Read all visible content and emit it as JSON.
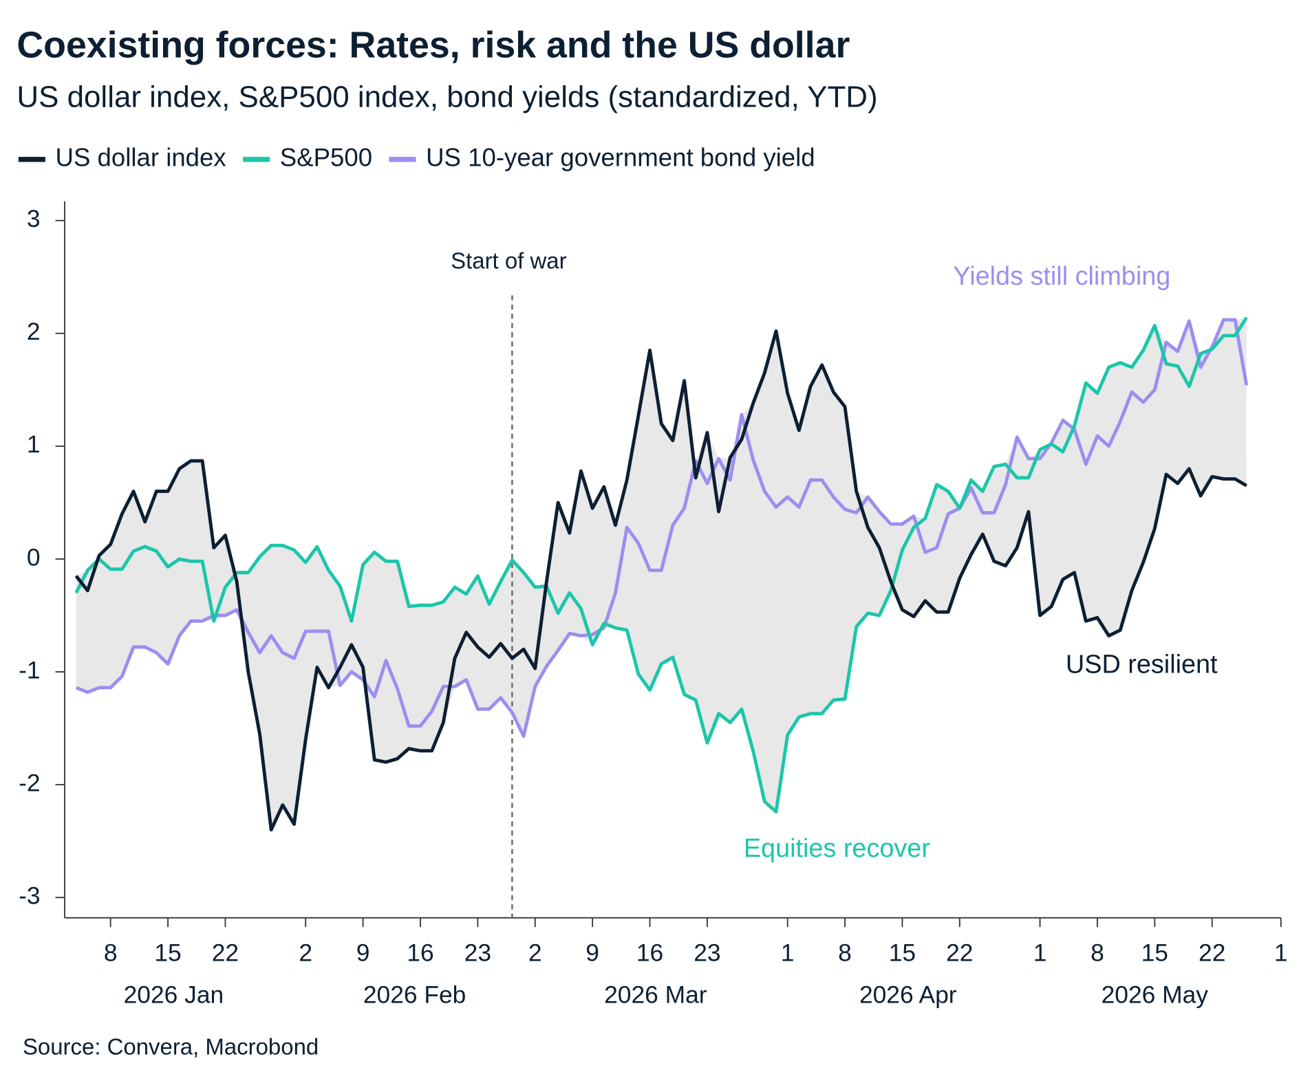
{
  "chart_data": {
    "type": "line",
    "title": "Coexisting forces: Rates, risk and the US dollar",
    "subtitle": "US dollar index, S&P500 index, bond yields (standardized, YTD)",
    "source": "Source: Convera, Macrobond",
    "x": [
      "2026-01-05",
      "2026-01-06",
      "2026-01-07",
      "2026-01-08",
      "2026-01-09",
      "2026-01-12",
      "2026-01-13",
      "2026-01-14",
      "2026-01-15",
      "2026-01-16",
      "2026-01-19",
      "2026-01-20",
      "2026-01-21",
      "2026-01-22",
      "2026-01-23",
      "2026-01-26",
      "2026-01-27",
      "2026-01-28",
      "2026-01-29",
      "2026-01-30",
      "2026-02-02",
      "2026-02-03",
      "2026-02-04",
      "2026-02-05",
      "2026-02-06",
      "2026-02-09",
      "2026-02-10",
      "2026-02-11",
      "2026-02-12",
      "2026-02-13",
      "2026-02-16",
      "2026-02-17",
      "2026-02-18",
      "2026-02-19",
      "2026-02-20",
      "2026-02-23",
      "2026-02-24",
      "2026-02-25",
      "2026-02-26",
      "2026-02-27",
      "2026-03-02",
      "2026-03-03",
      "2026-03-04",
      "2026-03-05",
      "2026-03-06",
      "2026-03-09",
      "2026-03-10",
      "2026-03-11",
      "2026-03-12",
      "2026-03-13",
      "2026-03-16",
      "2026-03-17",
      "2026-03-18",
      "2026-03-19",
      "2026-03-20",
      "2026-03-23",
      "2026-03-24",
      "2026-03-25",
      "2026-03-26",
      "2026-03-27",
      "2026-03-30",
      "2026-03-31",
      "2026-04-01",
      "2026-04-02",
      "2026-04-03",
      "2026-04-06",
      "2026-04-07",
      "2026-04-08",
      "2026-04-09",
      "2026-04-10",
      "2026-04-13",
      "2026-04-14",
      "2026-04-15",
      "2026-04-16",
      "2026-04-17",
      "2026-04-20",
      "2026-04-21",
      "2026-04-22",
      "2026-04-23",
      "2026-04-24",
      "2026-04-27",
      "2026-04-28",
      "2026-04-29",
      "2026-04-30",
      "2026-05-01",
      "2026-05-04",
      "2026-05-05",
      "2026-05-06",
      "2026-05-07",
      "2026-05-08",
      "2026-05-11",
      "2026-05-12",
      "2026-05-13",
      "2026-05-14",
      "2026-05-15",
      "2026-05-18",
      "2026-05-19",
      "2026-05-20",
      "2026-05-21",
      "2026-05-22",
      "2026-05-25",
      "2026-05-26",
      "2026-05-27"
    ],
    "series": [
      {
        "name": "US dollar index",
        "color": "#0c1f33",
        "values": [
          -0.15,
          -0.28,
          0.03,
          0.13,
          0.4,
          0.6,
          0.33,
          0.6,
          0.6,
          0.8,
          0.87,
          0.87,
          0.1,
          0.21,
          -0.2,
          -1.0,
          -1.55,
          -2.4,
          -2.18,
          -2.35,
          -1.6,
          -0.96,
          -1.14,
          -0.96,
          -0.76,
          -0.96,
          -1.78,
          -1.8,
          -1.77,
          -1.68,
          -1.7,
          -1.7,
          -1.45,
          -0.88,
          -0.65,
          -0.78,
          -0.87,
          -0.75,
          -0.88,
          -0.8,
          -0.97,
          -0.2,
          0.5,
          0.23,
          0.78,
          0.45,
          0.64,
          0.3,
          0.7,
          1.27,
          1.85,
          1.2,
          1.05,
          1.58,
          0.72,
          1.12,
          0.42,
          0.9,
          1.06,
          1.38,
          1.65,
          2.02,
          1.47,
          1.14,
          1.53,
          1.72,
          1.48,
          1.35,
          0.6,
          0.28,
          0.1,
          -0.2,
          -0.45,
          -0.51,
          -0.37,
          -0.47,
          -0.47,
          -0.17,
          0.04,
          0.22,
          -0.02,
          -0.06,
          0.1,
          0.42,
          -0.5,
          -0.42,
          -0.18,
          -0.12,
          -0.55,
          -0.52,
          -0.68,
          -0.63,
          -0.28,
          -0.03,
          0.27,
          0.75,
          0.67,
          0.8,
          0.56,
          0.73,
          0.71,
          0.71,
          0.65
        ]
      },
      {
        "name": "S&P500",
        "color": "#1bc6aa",
        "values": [
          -0.3,
          -0.1,
          0.0,
          -0.09,
          -0.09,
          0.07,
          0.11,
          0.07,
          -0.07,
          0.0,
          -0.02,
          -0.02,
          -0.55,
          -0.25,
          -0.12,
          -0.12,
          0.02,
          0.12,
          0.12,
          0.08,
          -0.03,
          0.11,
          -0.1,
          -0.24,
          -0.55,
          -0.05,
          0.06,
          -0.02,
          -0.02,
          -0.42,
          -0.41,
          -0.41,
          -0.38,
          -0.25,
          -0.31,
          -0.15,
          -0.4,
          -0.2,
          -0.01,
          -0.12,
          -0.25,
          -0.24,
          -0.48,
          -0.3,
          -0.44,
          -0.76,
          -0.57,
          -0.61,
          -0.63,
          -1.02,
          -1.16,
          -0.93,
          -0.87,
          -1.2,
          -1.25,
          -1.63,
          -1.37,
          -1.45,
          -1.33,
          -1.7,
          -2.15,
          -2.24,
          -1.56,
          -1.4,
          -1.37,
          -1.37,
          -1.25,
          -1.24,
          -0.6,
          -0.48,
          -0.5,
          -0.28,
          0.08,
          0.28,
          0.36,
          0.66,
          0.6,
          0.45,
          0.7,
          0.6,
          0.82,
          0.84,
          0.72,
          0.72,
          0.97,
          1.02,
          0.95,
          1.18,
          1.56,
          1.47,
          1.7,
          1.74,
          1.7,
          1.85,
          2.07,
          1.73,
          1.71,
          1.53,
          1.82,
          1.86,
          1.98,
          1.98,
          2.14
        ]
      },
      {
        "name": "US 10-year government bond yield",
        "color": "#9b8ef0",
        "values": [
          -1.14,
          -1.18,
          -1.14,
          -1.14,
          -1.04,
          -0.78,
          -0.78,
          -0.83,
          -0.93,
          -0.68,
          -0.55,
          -0.55,
          -0.5,
          -0.5,
          -0.45,
          -0.65,
          -0.83,
          -0.68,
          -0.83,
          -0.88,
          -0.64,
          -0.64,
          -0.64,
          -1.12,
          -1.0,
          -1.07,
          -1.22,
          -0.9,
          -1.15,
          -1.48,
          -1.48,
          -1.35,
          -1.13,
          -1.13,
          -1.07,
          -1.33,
          -1.33,
          -1.23,
          -1.36,
          -1.57,
          -1.13,
          -0.95,
          -0.81,
          -0.66,
          -0.68,
          -0.67,
          -0.61,
          -0.3,
          0.28,
          0.14,
          -0.1,
          -0.1,
          0.3,
          0.45,
          0.87,
          0.67,
          0.89,
          0.7,
          1.28,
          0.88,
          0.6,
          0.46,
          0.55,
          0.46,
          0.7,
          0.7,
          0.55,
          0.44,
          0.41,
          0.55,
          0.42,
          0.31,
          0.31,
          0.38,
          0.06,
          0.1,
          0.4,
          0.45,
          0.63,
          0.41,
          0.41,
          0.66,
          1.08,
          0.89,
          0.89,
          1.03,
          1.23,
          1.15,
          0.84,
          1.09,
          1.0,
          1.22,
          1.48,
          1.39,
          1.5,
          1.92,
          1.84,
          2.11,
          1.7,
          1.88,
          2.12,
          2.12,
          1.54
        ]
      }
    ],
    "xlim": [
      "2026-01-02",
      "2026-06-01"
    ],
    "xticks": [
      {
        "value": "2026-01-08",
        "label": "8"
      },
      {
        "value": "2026-01-15",
        "label": "15"
      },
      {
        "value": "2026-01-22",
        "label": "22"
      },
      {
        "value": "2026-02-02",
        "label": "2"
      },
      {
        "value": "2026-02-09",
        "label": "9"
      },
      {
        "value": "2026-02-16",
        "label": "16"
      },
      {
        "value": "2026-02-23",
        "label": "23"
      },
      {
        "value": "2026-03-02",
        "label": "2"
      },
      {
        "value": "2026-03-09",
        "label": "9"
      },
      {
        "value": "2026-03-16",
        "label": "16"
      },
      {
        "value": "2026-03-23",
        "label": "23"
      },
      {
        "value": "2026-04-01",
        "label": "1"
      },
      {
        "value": "2026-04-08",
        "label": "8"
      },
      {
        "value": "2026-04-15",
        "label": "15"
      },
      {
        "value": "2026-04-22",
        "label": "22"
      },
      {
        "value": "2026-05-01",
        "label": "1"
      },
      {
        "value": "2026-05-08",
        "label": "8"
      },
      {
        "value": "2026-05-15",
        "label": "15"
      },
      {
        "value": "2026-05-22",
        "label": "22"
      },
      {
        "value": "2026-06-01",
        "label": "1"
      }
    ],
    "month_labels": [
      {
        "value": "2026-01",
        "label": "2026 Jan"
      },
      {
        "value": "2026-02",
        "label": "2026 Feb"
      },
      {
        "value": "2026-03",
        "label": "2026 Mar"
      },
      {
        "value": "2026-04",
        "label": "2026 Apr"
      },
      {
        "value": "2026-05",
        "label": "2026 May"
      }
    ],
    "ylim": [
      -3.18,
      3.17
    ],
    "yticks": [
      -3,
      -2,
      -1,
      0,
      1,
      2,
      3
    ],
    "annotations": [
      {
        "label": "Start of war",
        "date": "2026-02-26",
        "color": "#0c1f33"
      },
      {
        "label": "Yields still climbing",
        "color": "#9b8ef0"
      },
      {
        "label": "USD resilient",
        "color": "#0c1f33"
      },
      {
        "label": "Equities recover",
        "color": "#1bc6aa"
      }
    ],
    "range_fill": "#e8e8e8"
  }
}
